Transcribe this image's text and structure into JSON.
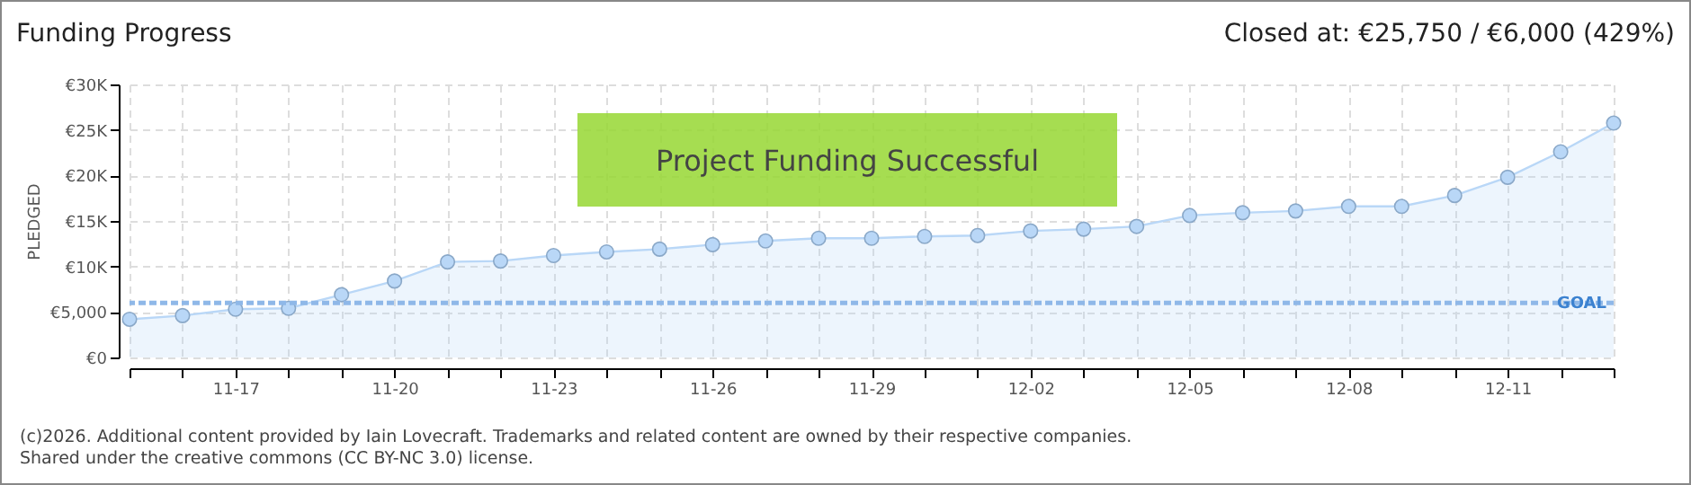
{
  "chart_data": {
    "type": "area",
    "title": "Funding Progress",
    "subtitle": "Closed at:  €25,750 /  €6,000 (429%)",
    "ylabel": "PLEDGED",
    "categories": [
      null,
      null,
      "11-17",
      null,
      null,
      "11-20",
      null,
      null,
      "11-23",
      null,
      null,
      "11-26",
      null,
      null,
      "11-29",
      null,
      null,
      "12-02",
      null,
      null,
      "12-05",
      null,
      null,
      "12-08",
      null,
      null,
      "12-11",
      null,
      null
    ],
    "series": [
      {
        "color": "#b9d7f7",
        "values": [
          4200,
          4600,
          5300,
          5400,
          6900,
          8400,
          10500,
          10600,
          11200,
          11600,
          11900,
          12400,
          12800,
          13100,
          13100,
          13300,
          13400,
          13900,
          14100,
          14400,
          15600,
          15900,
          16100,
          16600,
          16600,
          17800,
          19800,
          22600,
          25750
        ]
      }
    ],
    "ylim": [
      0,
      30000
    ],
    "yticks": [
      {
        "value": 0,
        "label": "€0"
      },
      {
        "value": 5000,
        "label": "€5,000"
      },
      {
        "value": 10000,
        "label": "€10K"
      },
      {
        "value": 15000,
        "label": "€15K"
      },
      {
        "value": 20000,
        "label": "€20K"
      },
      {
        "value": 25000,
        "label": "€25K"
      },
      {
        "value": 30000,
        "label": "€30K"
      }
    ],
    "ref_lines": [
      {
        "axis": "y",
        "value": 6000,
        "label": "GOAL",
        "color": "#8fb8e8",
        "line_style": "dashed"
      }
    ],
    "grid": true,
    "marker": "circle",
    "annotations": [
      "Project Funding Successful",
      "(c)2026. Additional content provided by Iain Lovecraft. Trademarks and related content are owned by their respective companies.",
      "Shared under the creative commons (CC BY-NC 3.0) license."
    ]
  }
}
